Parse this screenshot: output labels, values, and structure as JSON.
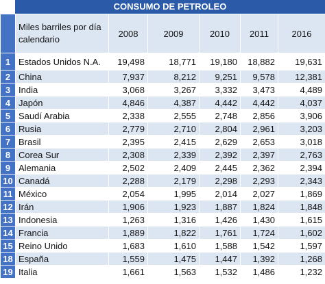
{
  "table": {
    "title": "CONSUMO DE PETROLEO",
    "header": [
      "",
      "Miles barriles por día calendario",
      "2008",
      "2009",
      "2010",
      "2011",
      "2016"
    ],
    "rows": [
      [
        "1",
        "Estados Unidos N.A.",
        "19,498",
        "18,771",
        "19,180",
        "18,882",
        "19,631"
      ],
      [
        "2",
        "China",
        "7,937",
        "8,212",
        "9,251",
        "9,578",
        "12,381"
      ],
      [
        "3",
        "India",
        "3,068",
        "3,267",
        "3,332",
        "3,473",
        "4,489"
      ],
      [
        "4",
        "Japón",
        "4,846",
        "4,387",
        "4,442",
        "4,442",
        "4,037"
      ],
      [
        "5",
        "Saudí Arabia",
        "2,338",
        "2,555",
        "2,748",
        "2,856",
        "3,906"
      ],
      [
        "6",
        "Rusia",
        "2,779",
        "2,710",
        "2,804",
        "2,961",
        "3,203"
      ],
      [
        "7",
        "Brasil",
        "2,395",
        "2,415",
        "2,629",
        "2,653",
        "3,018"
      ],
      [
        "8",
        "Corea Sur",
        "2,308",
        "2,339",
        "2,392",
        "2,397",
        "2,763"
      ],
      [
        "9",
        "Alemania",
        "2,502",
        "2,409",
        "2,445",
        "2,362",
        "2,394"
      ],
      [
        "10",
        "Canadá",
        "2,288",
        "2,179",
        "2,298",
        "2,293",
        "2,343"
      ],
      [
        "11",
        "México",
        "2,054",
        "1,995",
        "2,014",
        "2,027",
        "1,869"
      ],
      [
        "12",
        "Irán",
        "1,906",
        "1,923",
        "1,887",
        "1,824",
        "1,848"
      ],
      [
        "13",
        "Indonesia",
        "1,263",
        "1,316",
        "1,426",
        "1,430",
        "1,615"
      ],
      [
        "14",
        "Francia",
        "1,889",
        "1,822",
        "1,761",
        "1,724",
        "1,602"
      ],
      [
        "15",
        "Reino Unido",
        "1,683",
        "1,610",
        "1,588",
        "1,542",
        "1,597"
      ],
      [
        "18",
        "España",
        "1,559",
        "1,475",
        "1,447",
        "1,392",
        "1,268"
      ],
      [
        "19",
        "Italia",
        "1,661",
        "1,563",
        "1,532",
        "1,486",
        "1,232"
      ]
    ]
  }
}
